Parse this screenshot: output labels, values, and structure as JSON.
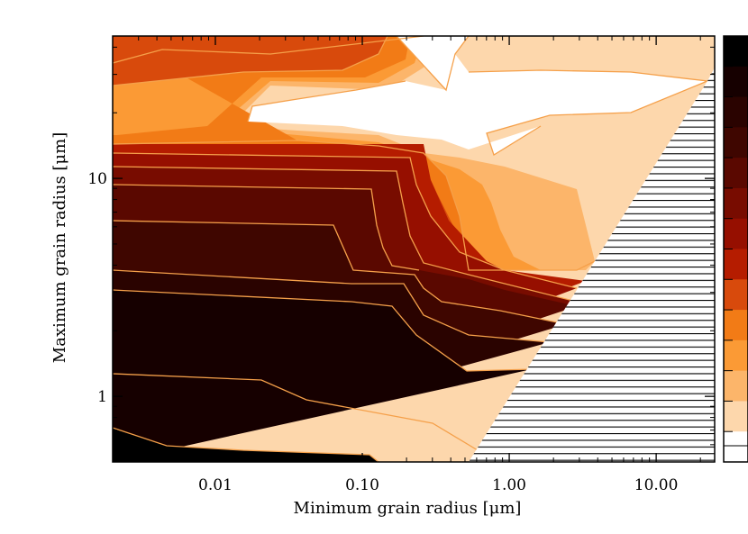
{
  "chart_data": {
    "type": "contour",
    "xlabel": "Minimum grain radius [μm]",
    "ylabel": "Maximum grain radius [μm]",
    "x_scale": "log",
    "y_scale": "log",
    "xlim": [
      0.002,
      25.0
    ],
    "ylim": [
      0.5,
      45.0
    ],
    "x_ticks": [
      {
        "value": 0.01,
        "label": "0.01"
      },
      {
        "value": 0.1,
        "label": "0.10"
      },
      {
        "value": 1.0,
        "label": "1.00"
      },
      {
        "value": 10.0,
        "label": "10.00"
      }
    ],
    "y_ticks": [
      {
        "value": 1,
        "label": "1"
      },
      {
        "value": 10,
        "label": "10"
      }
    ],
    "hatched_region": "amin > amax (unphysical)",
    "colorbar_ticks": "unlabeled",
    "level_colors": [
      "#000000",
      "#160000",
      "#2a0300",
      "#3f0600",
      "#5a0800",
      "#780c00",
      "#960f00",
      "#b51c00",
      "#d84a0c",
      "#f27b16",
      "#fb9a35",
      "#fcb56a",
      "#fdd7ac",
      "#ffffff"
    ],
    "contour_line_color": "#f5a04a"
  }
}
